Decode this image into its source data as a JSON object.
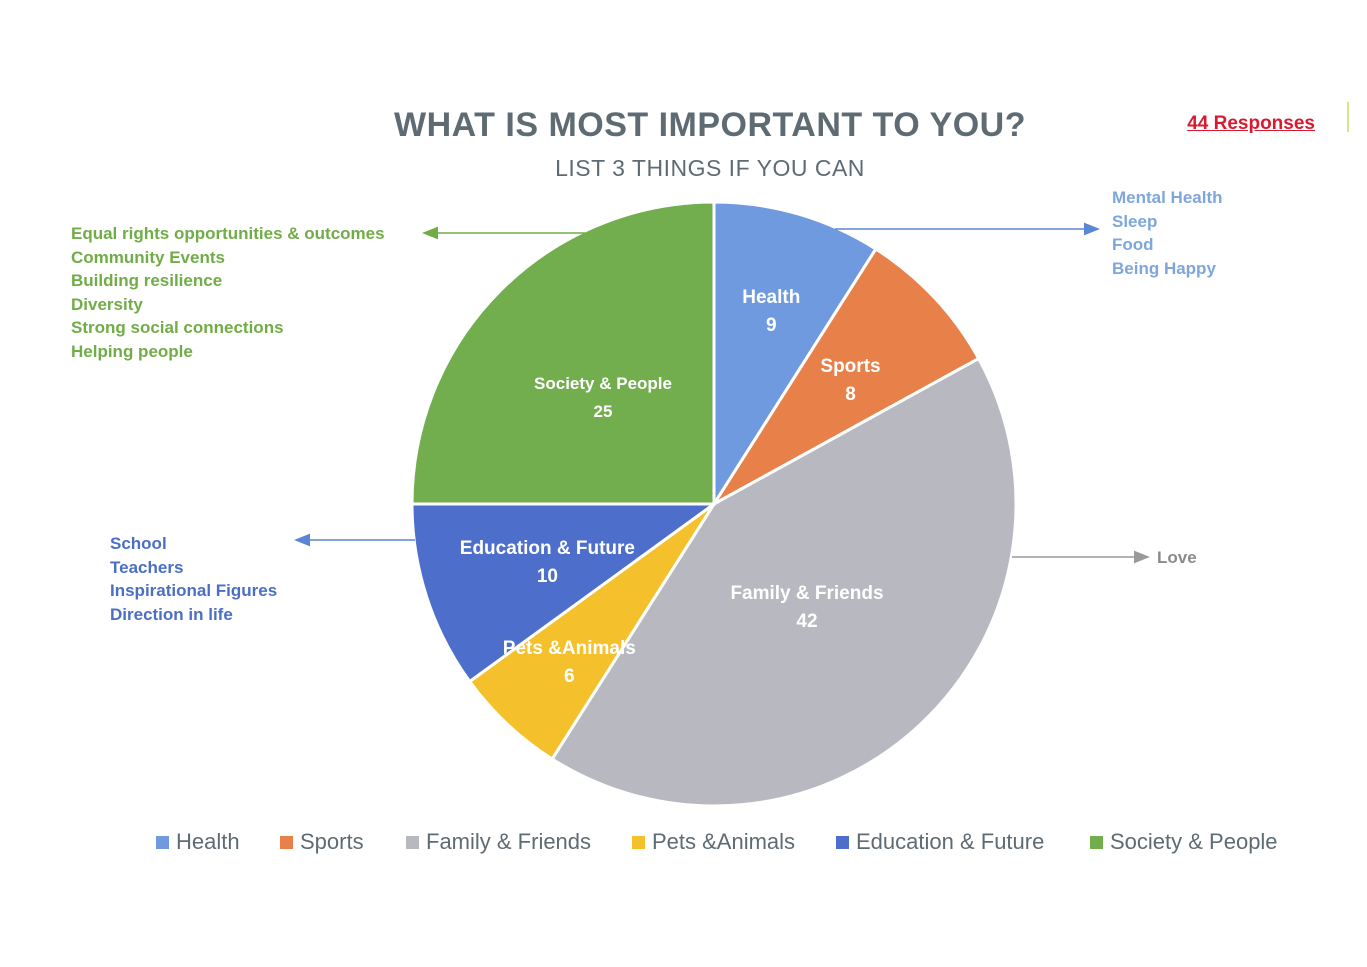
{
  "title": "WHAT IS MOST IMPORTANT TO YOU?",
  "subtitle": "LIST 3 THINGS IF YOU CAN",
  "responses": "44 Responses",
  "chart_data": {
    "type": "pie",
    "title": "WHAT IS MOST IMPORTANT TO YOU?",
    "subtitle": "LIST 3 THINGS IF YOU CAN",
    "categories": [
      "Health",
      "Sports",
      "Family & Friends",
      "Pets &Animals",
      "Education & Future",
      "Society & People"
    ],
    "values": [
      9,
      8,
      42,
      6,
      10,
      25
    ],
    "colors": [
      "#6f9ae0",
      "#e8804a",
      "#b8b9c0",
      "#f4c12c",
      "#4d6fcb",
      "#72ae4d"
    ],
    "legend_position": "bottom"
  },
  "annotations": {
    "society": [
      "Equal rights opportunities & outcomes",
      "Community Events",
      "Building resilience",
      "Diversity",
      "Strong social connections",
      "Helping people"
    ],
    "health": [
      "Mental Health",
      "Sleep",
      "Food",
      "Being Happy"
    ],
    "education": [
      "School",
      "Teachers",
      "Inspirational Figures",
      "Direction in life"
    ],
    "family": [
      "Love"
    ]
  }
}
